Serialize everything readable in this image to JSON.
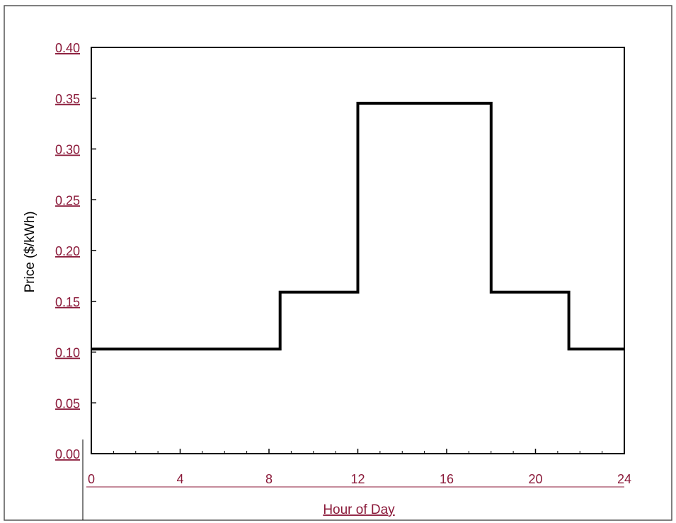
{
  "chart_data": {
    "type": "line",
    "step": true,
    "xlabel": "Hour of Day",
    "ylabel": "Price  ($/kWh)",
    "xlim": [
      0,
      24
    ],
    "ylim": [
      0,
      0.4
    ],
    "x_ticks": [
      0,
      4,
      8,
      12,
      16,
      20,
      24
    ],
    "y_ticks": [
      0.0,
      0.05,
      0.1,
      0.15,
      0.2,
      0.25,
      0.3,
      0.35,
      0.4
    ],
    "x_tick_labels": [
      "0",
      "4",
      "8",
      "12",
      "16",
      "20",
      "24"
    ],
    "y_tick_labels": [
      "0.00",
      "0.05",
      "0.10",
      "0.15",
      "0.20",
      "0.25",
      "0.30",
      "0.35",
      "0.40"
    ],
    "grid": false,
    "series": [
      {
        "x": [
          0,
          8.5,
          8.5,
          12,
          12,
          18,
          18,
          21.5,
          21.5,
          24
        ],
        "y": [
          0.103,
          0.103,
          0.159,
          0.159,
          0.345,
          0.345,
          0.159,
          0.159,
          0.103,
          0.103
        ]
      }
    ]
  },
  "colors": {
    "tick_label": "#8b1a3a",
    "axis_line": "#8b1a3a",
    "series_line": "#000000",
    "frame": "#555555"
  }
}
